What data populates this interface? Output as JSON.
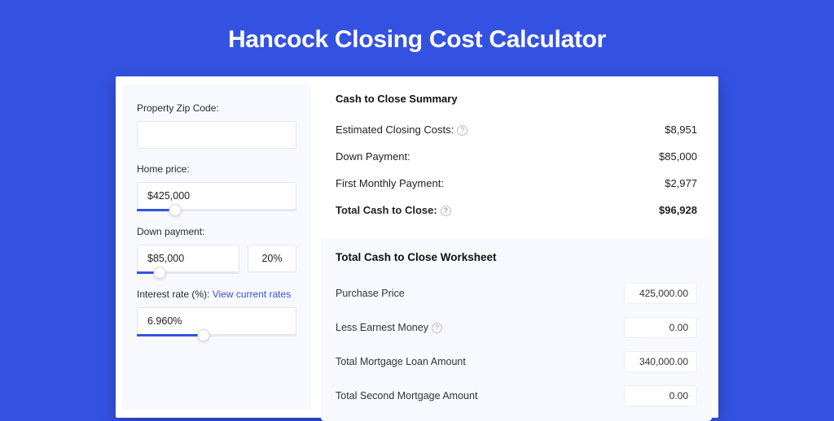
{
  "colors": {
    "page_bg": "#3452e1",
    "shadow_strip": "#2a3fb5",
    "card_bg": "#ffffff",
    "panel_bg": "#f7f9ff",
    "input_border": "#e3e6ef",
    "slider_track": "#e7e8ef",
    "slider_fill": "#3452e1",
    "link": "#3452e1",
    "text": "#222222"
  },
  "header": {
    "title": "Hancock Closing Cost Calculator"
  },
  "inputs": {
    "zip_label": "Property Zip Code:",
    "zip_value": "",
    "home_price_label": "Home price:",
    "home_price_value": "$425,000",
    "home_price_slider_pct": 24,
    "down_payment_label": "Down payment:",
    "down_payment_value": "$85,000",
    "down_payment_pct_value": "20%",
    "down_payment_slider_pct": 22,
    "interest_label_prefix": "Interest rate (%): ",
    "interest_link_text": "View current rates",
    "interest_value": "6.960%",
    "interest_slider_pct": 42
  },
  "summary": {
    "title": "Cash to Close Summary",
    "rows": [
      {
        "label": "Estimated Closing Costs:",
        "help": true,
        "value": "$8,951",
        "bold": false
      },
      {
        "label": "Down Payment:",
        "help": false,
        "value": "$85,000",
        "bold": false
      },
      {
        "label": "First Monthly Payment:",
        "help": false,
        "value": "$2,977",
        "bold": false
      },
      {
        "label": "Total Cash to Close:",
        "help": true,
        "value": "$96,928",
        "bold": true
      }
    ]
  },
  "worksheet": {
    "title": "Total Cash to Close Worksheet",
    "rows": [
      {
        "label": "Purchase Price",
        "help": false,
        "value": "425,000.00"
      },
      {
        "label": "Less Earnest Money",
        "help": true,
        "value": "0.00"
      },
      {
        "label": "Total Mortgage Loan Amount",
        "help": false,
        "value": "340,000.00"
      },
      {
        "label": "Total Second Mortgage Amount",
        "help": false,
        "value": "0.00"
      }
    ]
  }
}
